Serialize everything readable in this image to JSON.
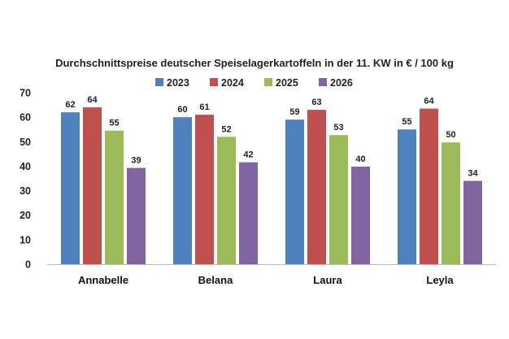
{
  "chart_data": {
    "type": "bar",
    "title": "Durchschnittspreise deutscher Speiselagerkartoffeln in der 11. KW in € / 100 kg",
    "categories": [
      "Annabelle",
      "Belana",
      "Laura",
      "Leyla"
    ],
    "series": [
      {
        "name": "2023",
        "color": "#4f81bd",
        "values": [
          62,
          60,
          59,
          55
        ],
        "labels": [
          "62",
          "60",
          "59",
          "55"
        ]
      },
      {
        "name": "2024",
        "color": "#c0504d",
        "values": [
          64,
          61,
          63,
          63.5
        ],
        "labels": [
          "64",
          "61",
          "63",
          "64"
        ]
      },
      {
        "name": "2025",
        "color": "#9bbb59",
        "values": [
          54.5,
          52,
          52.7,
          49.7
        ],
        "labels": [
          "55",
          "52",
          "53",
          "50"
        ]
      },
      {
        "name": "2026",
        "color": "#8064a2",
        "values": [
          39.3,
          41.6,
          39.8,
          34
        ],
        "labels": [
          "39",
          "42",
          "40",
          "34"
        ]
      }
    ],
    "ylim": [
      0,
      70
    ],
    "yticks": [
      "0",
      "10",
      "20",
      "30",
      "40",
      "50",
      "60",
      "70"
    ],
    "xlabel": "",
    "ylabel": "",
    "grid": false,
    "legend_position": "top"
  }
}
